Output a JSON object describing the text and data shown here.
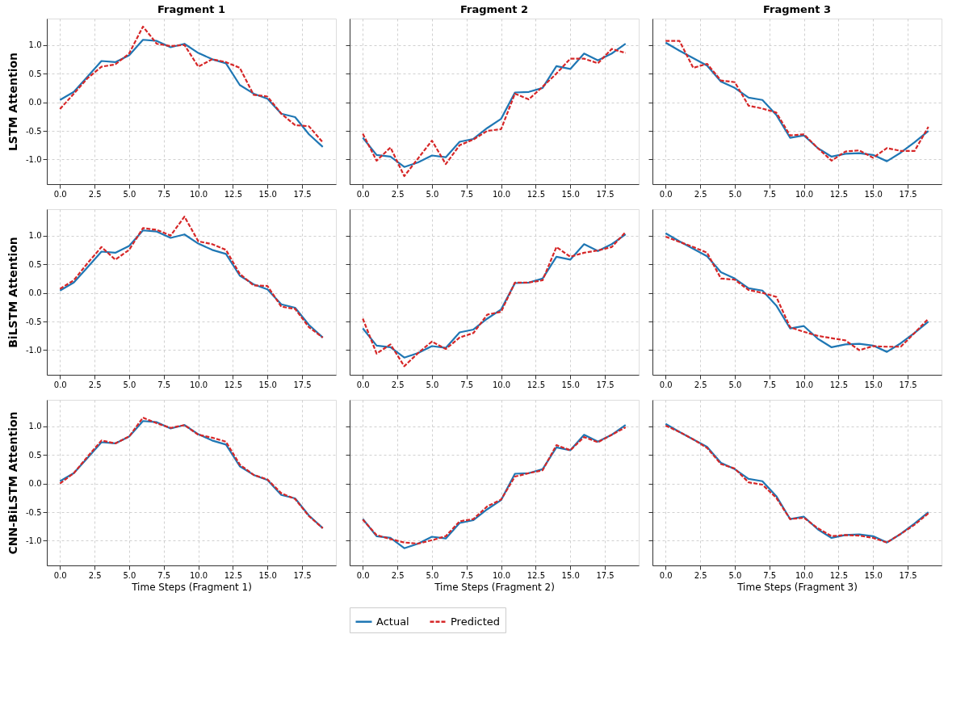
{
  "chart_data": [
    {
      "type": "line",
      "title": "Fragment 1",
      "ylabel": "LSTM Attention",
      "x": [
        0,
        1,
        2,
        3,
        4,
        5,
        6,
        7,
        8,
        9,
        10,
        11,
        12,
        13,
        14,
        15,
        16,
        17,
        18,
        19
      ],
      "xlim": [
        -0.95,
        19.95
      ],
      "ylim": [
        -1.43,
        1.46
      ],
      "xticks": [
        {
          "value": 0,
          "label": "0.0"
        },
        {
          "value": 2.5,
          "label": "2.5"
        },
        {
          "value": 5,
          "label": "5.0"
        },
        {
          "value": 7.5,
          "label": "7.5"
        },
        {
          "value": 10,
          "label": "10.0"
        },
        {
          "value": 12.5,
          "label": "12.5"
        },
        {
          "value": 15,
          "label": "15.0"
        },
        {
          "value": 17.5,
          "label": "17.5"
        }
      ],
      "yticks": [
        {
          "value": -1,
          "label": "-1.0"
        },
        {
          "value": -0.5,
          "label": "-0.5"
        },
        {
          "value": 0,
          "label": "0.0"
        },
        {
          "value": 0.5,
          "label": "0.5"
        },
        {
          "value": 1,
          "label": "1.0"
        }
      ],
      "grid": true,
      "series": [
        {
          "color": "#1f77b4",
          "line_style": "solid",
          "values": [
            0.04,
            0.18,
            0.45,
            0.72,
            0.7,
            0.82,
            1.09,
            1.07,
            0.96,
            1.02,
            0.86,
            0.75,
            0.68,
            0.3,
            0.15,
            0.06,
            -0.2,
            -0.26,
            -0.56,
            -0.78
          ]
        },
        {
          "color": "#d62728",
          "line_style": "dashed",
          "values": [
            -0.12,
            0.15,
            0.42,
            0.62,
            0.66,
            0.85,
            1.32,
            1.02,
            0.98,
            1.0,
            0.62,
            0.75,
            0.7,
            0.6,
            0.13,
            0.1,
            -0.2,
            -0.4,
            -0.42,
            -0.7
          ]
        }
      ]
    },
    {
      "type": "line",
      "title": "Fragment 2",
      "x": [
        0,
        1,
        2,
        3,
        4,
        5,
        6,
        7,
        8,
        9,
        10,
        11,
        12,
        13,
        14,
        15,
        16,
        17,
        18,
        19
      ],
      "xlim": [
        -0.95,
        19.95
      ],
      "ylim": [
        -1.43,
        1.46
      ],
      "xticks": [
        {
          "value": 0,
          "label": "0.0"
        },
        {
          "value": 2.5,
          "label": "2.5"
        },
        {
          "value": 5,
          "label": "5.0"
        },
        {
          "value": 7.5,
          "label": "7.5"
        },
        {
          "value": 10,
          "label": "10.0"
        },
        {
          "value": 12.5,
          "label": "12.5"
        },
        {
          "value": 15,
          "label": "15.0"
        },
        {
          "value": 17.5,
          "label": "17.5"
        }
      ],
      "yticks": [
        {
          "value": -1,
          "label": null
        },
        {
          "value": -0.5,
          "label": null
        },
        {
          "value": 0,
          "label": null
        },
        {
          "value": 0.5,
          "label": null
        },
        {
          "value": 1,
          "label": null
        }
      ],
      "tick_labels": "x",
      "grid": true,
      "series": [
        {
          "color": "#1f77b4",
          "line_style": "solid",
          "values": [
            -0.62,
            -0.92,
            -0.95,
            -1.13,
            -1.05,
            -0.93,
            -0.96,
            -0.69,
            -0.64,
            -0.45,
            -0.29,
            0.17,
            0.18,
            0.25,
            0.63,
            0.58,
            0.85,
            0.73,
            0.85,
            1.02
          ]
        },
        {
          "color": "#d62728",
          "line_style": "dashed",
          "values": [
            -0.55,
            -1.02,
            -0.79,
            -1.29,
            -0.98,
            -0.67,
            -1.08,
            -0.75,
            -0.65,
            -0.5,
            -0.47,
            0.15,
            0.05,
            0.27,
            0.5,
            0.76,
            0.76,
            0.68,
            0.93,
            0.86
          ]
        }
      ]
    },
    {
      "type": "line",
      "title": "Fragment 3",
      "x": [
        0,
        1,
        2,
        3,
        4,
        5,
        6,
        7,
        8,
        9,
        10,
        11,
        12,
        13,
        14,
        15,
        16,
        17,
        18,
        19
      ],
      "xlim": [
        -0.95,
        19.95
      ],
      "ylim": [
        -1.43,
        1.46
      ],
      "xticks": [
        {
          "value": 0,
          "label": "0.0"
        },
        {
          "value": 2.5,
          "label": "2.5"
        },
        {
          "value": 5,
          "label": "5.0"
        },
        {
          "value": 7.5,
          "label": "7.5"
        },
        {
          "value": 10,
          "label": "10.0"
        },
        {
          "value": 12.5,
          "label": "12.5"
        },
        {
          "value": 15,
          "label": "15.0"
        },
        {
          "value": 17.5,
          "label": "17.5"
        }
      ],
      "yticks": [
        {
          "value": -1,
          "label": null
        },
        {
          "value": -0.5,
          "label": null
        },
        {
          "value": 0,
          "label": null
        },
        {
          "value": 0.5,
          "label": null
        },
        {
          "value": 1,
          "label": null
        }
      ],
      "tick_labels": "x",
      "grid": true,
      "series": [
        {
          "color": "#1f77b4",
          "line_style": "solid",
          "values": [
            1.04,
            0.9,
            0.77,
            0.64,
            0.36,
            0.25,
            0.08,
            0.04,
            -0.22,
            -0.62,
            -0.58,
            -0.8,
            -0.95,
            -0.9,
            -0.89,
            -0.92,
            -1.03,
            -0.88,
            -0.7,
            -0.5
          ]
        },
        {
          "color": "#d62728",
          "line_style": "dashed",
          "values": [
            1.07,
            1.07,
            0.6,
            0.67,
            0.38,
            0.35,
            -0.06,
            -0.11,
            -0.18,
            -0.58,
            -0.56,
            -0.8,
            -1.02,
            -0.86,
            -0.84,
            -0.97,
            -0.8,
            -0.85,
            -0.85,
            -0.43
          ]
        }
      ]
    },
    {
      "type": "line",
      "ylabel": "BiLSTM Attention",
      "x": [
        0,
        1,
        2,
        3,
        4,
        5,
        6,
        7,
        8,
        9,
        10,
        11,
        12,
        13,
        14,
        15,
        16,
        17,
        18,
        19
      ],
      "xlim": [
        -0.95,
        19.95
      ],
      "ylim": [
        -1.43,
        1.46
      ],
      "xticks": [
        {
          "value": 0,
          "label": "0.0"
        },
        {
          "value": 2.5,
          "label": "2.5"
        },
        {
          "value": 5,
          "label": "5.0"
        },
        {
          "value": 7.5,
          "label": "7.5"
        },
        {
          "value": 10,
          "label": "10.0"
        },
        {
          "value": 12.5,
          "label": "12.5"
        },
        {
          "value": 15,
          "label": "15.0"
        },
        {
          "value": 17.5,
          "label": "17.5"
        }
      ],
      "yticks": [
        {
          "value": -1,
          "label": "-1.0"
        },
        {
          "value": -0.5,
          "label": "-0.5"
        },
        {
          "value": 0,
          "label": "0.0"
        },
        {
          "value": 0.5,
          "label": "0.5"
        },
        {
          "value": 1,
          "label": "1.0"
        }
      ],
      "grid": true,
      "series": [
        {
          "color": "#1f77b4",
          "line_style": "solid",
          "values": [
            0.04,
            0.18,
            0.45,
            0.72,
            0.7,
            0.82,
            1.09,
            1.07,
            0.96,
            1.02,
            0.86,
            0.75,
            0.68,
            0.3,
            0.15,
            0.06,
            -0.2,
            -0.26,
            -0.56,
            -0.78
          ]
        },
        {
          "color": "#d62728",
          "line_style": "dashed",
          "values": [
            0.07,
            0.22,
            0.52,
            0.8,
            0.58,
            0.75,
            1.13,
            1.1,
            1.0,
            1.33,
            0.9,
            0.85,
            0.75,
            0.33,
            0.13,
            0.12,
            -0.24,
            -0.28,
            -0.6,
            -0.78
          ]
        }
      ]
    },
    {
      "type": "line",
      "x": [
        0,
        1,
        2,
        3,
        4,
        5,
        6,
        7,
        8,
        9,
        10,
        11,
        12,
        13,
        14,
        15,
        16,
        17,
        18,
        19
      ],
      "xlim": [
        -0.95,
        19.95
      ],
      "ylim": [
        -1.43,
        1.46
      ],
      "xticks": [
        {
          "value": 0,
          "label": "0.0"
        },
        {
          "value": 2.5,
          "label": "2.5"
        },
        {
          "value": 5,
          "label": "5.0"
        },
        {
          "value": 7.5,
          "label": "7.5"
        },
        {
          "value": 10,
          "label": "10.0"
        },
        {
          "value": 12.5,
          "label": "12.5"
        },
        {
          "value": 15,
          "label": "15.0"
        },
        {
          "value": 17.5,
          "label": "17.5"
        }
      ],
      "yticks": [
        {
          "value": -1,
          "label": null
        },
        {
          "value": -0.5,
          "label": null
        },
        {
          "value": 0,
          "label": null
        },
        {
          "value": 0.5,
          "label": null
        },
        {
          "value": 1,
          "label": null
        }
      ],
      "tick_labels": "x",
      "grid": true,
      "series": [
        {
          "color": "#1f77b4",
          "line_style": "solid",
          "values": [
            -0.62,
            -0.92,
            -0.95,
            -1.13,
            -1.05,
            -0.93,
            -0.96,
            -0.69,
            -0.64,
            -0.45,
            -0.29,
            0.17,
            0.18,
            0.25,
            0.63,
            0.58,
            0.85,
            0.73,
            0.85,
            1.02
          ]
        },
        {
          "color": "#d62728",
          "line_style": "dashed",
          "values": [
            -0.45,
            -1.06,
            -0.9,
            -1.28,
            -1.05,
            -0.85,
            -0.98,
            -0.78,
            -0.7,
            -0.38,
            -0.33,
            0.18,
            0.18,
            0.22,
            0.8,
            0.63,
            0.7,
            0.74,
            0.8,
            1.06
          ]
        }
      ]
    },
    {
      "type": "line",
      "x": [
        0,
        1,
        2,
        3,
        4,
        5,
        6,
        7,
        8,
        9,
        10,
        11,
        12,
        13,
        14,
        15,
        16,
        17,
        18,
        19
      ],
      "xlim": [
        -0.95,
        19.95
      ],
      "ylim": [
        -1.43,
        1.46
      ],
      "xticks": [
        {
          "value": 0,
          "label": "0.0"
        },
        {
          "value": 2.5,
          "label": "2.5"
        },
        {
          "value": 5,
          "label": "5.0"
        },
        {
          "value": 7.5,
          "label": "7.5"
        },
        {
          "value": 10,
          "label": "10.0"
        },
        {
          "value": 12.5,
          "label": "12.5"
        },
        {
          "value": 15,
          "label": "15.0"
        },
        {
          "value": 17.5,
          "label": "17.5"
        }
      ],
      "yticks": [
        {
          "value": -1,
          "label": null
        },
        {
          "value": -0.5,
          "label": null
        },
        {
          "value": 0,
          "label": null
        },
        {
          "value": 0.5,
          "label": null
        },
        {
          "value": 1,
          "label": null
        }
      ],
      "tick_labels": "x",
      "grid": true,
      "series": [
        {
          "color": "#1f77b4",
          "line_style": "solid",
          "values": [
            1.04,
            0.9,
            0.77,
            0.64,
            0.36,
            0.25,
            0.08,
            0.04,
            -0.22,
            -0.62,
            -0.58,
            -0.8,
            -0.95,
            -0.9,
            -0.89,
            -0.92,
            -1.03,
            -0.88,
            -0.7,
            -0.5
          ]
        },
        {
          "color": "#d62728",
          "line_style": "dashed",
          "values": [
            0.98,
            0.89,
            0.8,
            0.7,
            0.25,
            0.23,
            0.05,
            0.0,
            -0.07,
            -0.6,
            -0.68,
            -0.75,
            -0.79,
            -0.83,
            -1.0,
            -0.93,
            -0.94,
            -0.94,
            -0.7,
            -0.45
          ]
        }
      ]
    },
    {
      "type": "line",
      "ylabel": "CNN-BiLSTM Attention",
      "xlabel": "Time Steps (Fragment 1)",
      "x": [
        0,
        1,
        2,
        3,
        4,
        5,
        6,
        7,
        8,
        9,
        10,
        11,
        12,
        13,
        14,
        15,
        16,
        17,
        18,
        19
      ],
      "xlim": [
        -0.95,
        19.95
      ],
      "ylim": [
        -1.43,
        1.46
      ],
      "xticks": [
        {
          "value": 0,
          "label": "0.0"
        },
        {
          "value": 2.5,
          "label": "2.5"
        },
        {
          "value": 5,
          "label": "5.0"
        },
        {
          "value": 7.5,
          "label": "7.5"
        },
        {
          "value": 10,
          "label": "10.0"
        },
        {
          "value": 12.5,
          "label": "12.5"
        },
        {
          "value": 15,
          "label": "15.0"
        },
        {
          "value": 17.5,
          "label": "17.5"
        }
      ],
      "yticks": [
        {
          "value": -1,
          "label": "-1.0"
        },
        {
          "value": -0.5,
          "label": "-0.5"
        },
        {
          "value": 0,
          "label": "0.0"
        },
        {
          "value": 0.5,
          "label": "0.5"
        },
        {
          "value": 1,
          "label": "1.0"
        }
      ],
      "grid": true,
      "series": [
        {
          "color": "#1f77b4",
          "line_style": "solid",
          "values": [
            0.04,
            0.18,
            0.45,
            0.72,
            0.7,
            0.82,
            1.09,
            1.07,
            0.96,
            1.02,
            0.86,
            0.75,
            0.68,
            0.3,
            0.15,
            0.06,
            -0.2,
            -0.26,
            -0.56,
            -0.78
          ]
        },
        {
          "color": "#d62728",
          "line_style": "dashed",
          "values": [
            0.0,
            0.18,
            0.47,
            0.75,
            0.7,
            0.82,
            1.15,
            1.05,
            0.97,
            1.02,
            0.85,
            0.8,
            0.73,
            0.33,
            0.15,
            0.07,
            -0.17,
            -0.27,
            -0.57,
            -0.78
          ]
        }
      ]
    },
    {
      "type": "line",
      "xlabel": "Time Steps (Fragment 2)",
      "legend": "bottom",
      "x": [
        0,
        1,
        2,
        3,
        4,
        5,
        6,
        7,
        8,
        9,
        10,
        11,
        12,
        13,
        14,
        15,
        16,
        17,
        18,
        19
      ],
      "xlim": [
        -0.95,
        19.95
      ],
      "ylim": [
        -1.43,
        1.46
      ],
      "xticks": [
        {
          "value": 0,
          "label": "0.0"
        },
        {
          "value": 2.5,
          "label": "2.5"
        },
        {
          "value": 5,
          "label": "5.0"
        },
        {
          "value": 7.5,
          "label": "7.5"
        },
        {
          "value": 10,
          "label": "10.0"
        },
        {
          "value": 12.5,
          "label": "12.5"
        },
        {
          "value": 15,
          "label": "15.0"
        },
        {
          "value": 17.5,
          "label": "17.5"
        }
      ],
      "yticks": [
        {
          "value": -1,
          "label": null
        },
        {
          "value": -0.5,
          "label": null
        },
        {
          "value": 0,
          "label": null
        },
        {
          "value": 0.5,
          "label": null
        },
        {
          "value": 1,
          "label": null
        }
      ],
      "tick_labels": "x",
      "grid": true,
      "series": [
        {
          "name": "Actual",
          "color": "#1f77b4",
          "line_style": "solid",
          "values": [
            -0.62,
            -0.92,
            -0.95,
            -1.13,
            -1.05,
            -0.93,
            -0.96,
            -0.69,
            -0.64,
            -0.45,
            -0.29,
            0.17,
            0.18,
            0.25,
            0.63,
            0.58,
            0.85,
            0.73,
            0.85,
            1.02
          ]
        },
        {
          "name": "Predicted",
          "color": "#d62728",
          "line_style": "dashed",
          "values": [
            -0.63,
            -0.9,
            -0.97,
            -1.03,
            -1.05,
            -0.99,
            -0.92,
            -0.66,
            -0.62,
            -0.4,
            -0.28,
            0.12,
            0.18,
            0.23,
            0.67,
            0.58,
            0.81,
            0.72,
            0.85,
            0.98
          ]
        }
      ]
    },
    {
      "type": "line",
      "xlabel": "Time Steps (Fragment 3)",
      "x": [
        0,
        1,
        2,
        3,
        4,
        5,
        6,
        7,
        8,
        9,
        10,
        11,
        12,
        13,
        14,
        15,
        16,
        17,
        18,
        19
      ],
      "xlim": [
        -0.95,
        19.95
      ],
      "ylim": [
        -1.43,
        1.46
      ],
      "xticks": [
        {
          "value": 0,
          "label": "0.0"
        },
        {
          "value": 2.5,
          "label": "2.5"
        },
        {
          "value": 5,
          "label": "5.0"
        },
        {
          "value": 7.5,
          "label": "7.5"
        },
        {
          "value": 10,
          "label": "10.0"
        },
        {
          "value": 12.5,
          "label": "12.5"
        },
        {
          "value": 15,
          "label": "15.0"
        },
        {
          "value": 17.5,
          "label": "17.5"
        }
      ],
      "yticks": [
        {
          "value": -1,
          "label": null
        },
        {
          "value": -0.5,
          "label": null
        },
        {
          "value": 0,
          "label": null
        },
        {
          "value": 0.5,
          "label": null
        },
        {
          "value": 1,
          "label": null
        }
      ],
      "tick_labels": "x",
      "grid": true,
      "series": [
        {
          "color": "#1f77b4",
          "line_style": "solid",
          "values": [
            1.04,
            0.9,
            0.77,
            0.64,
            0.36,
            0.25,
            0.08,
            0.04,
            -0.22,
            -0.62,
            -0.58,
            -0.8,
            -0.95,
            -0.9,
            -0.89,
            -0.92,
            -1.03,
            -0.88,
            -0.7,
            -0.5
          ]
        },
        {
          "color": "#d62728",
          "line_style": "dashed",
          "values": [
            1.01,
            0.9,
            0.77,
            0.62,
            0.34,
            0.26,
            0.02,
            -0.02,
            -0.25,
            -0.62,
            -0.6,
            -0.78,
            -0.92,
            -0.9,
            -0.91,
            -0.95,
            -1.03,
            -0.88,
            -0.72,
            -0.52
          ]
        }
      ]
    }
  ]
}
